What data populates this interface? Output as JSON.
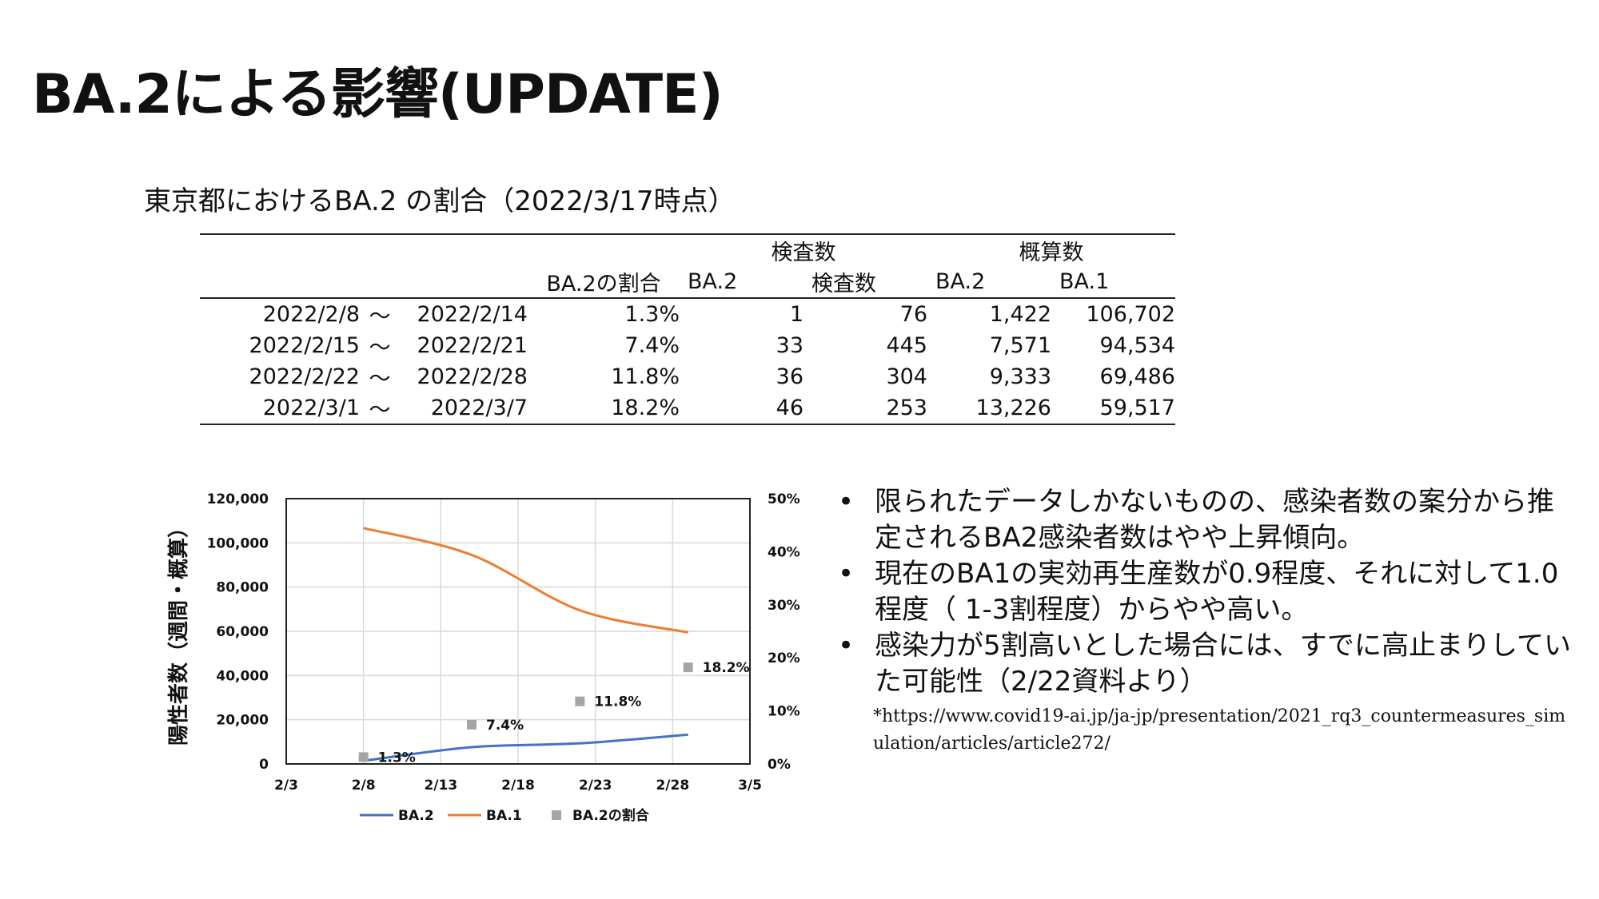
{
  "title": "BA.2による影響(UPDATE)",
  "table_caption": "東京都におけるBA.2 の割合（2022/3/17時点）",
  "table": {
    "group_headers": {
      "tests": "検査数",
      "estimates": "概算数"
    },
    "col_headers": {
      "ratio": "BA.2の割合",
      "ba2": "BA.2",
      "tests": "検査数",
      "est_ba2": "BA.2",
      "est_ba1": "BA.1"
    },
    "tilde": "～",
    "rows": [
      {
        "start": "2022/2/8",
        "end": "2022/2/14",
        "ratio": "1.3%",
        "ba2": "1",
        "tests": "76",
        "est_ba2": "1,422",
        "est_ba1": "106,702"
      },
      {
        "start": "2022/2/15",
        "end": "2022/2/21",
        "ratio": "7.4%",
        "ba2": "33",
        "tests": "445",
        "est_ba2": "7,571",
        "est_ba1": "94,534"
      },
      {
        "start": "2022/2/22",
        "end": "2022/2/28",
        "ratio": "11.8%",
        "ba2": "36",
        "tests": "304",
        "est_ba2": "9,333",
        "est_ba1": "69,486"
      },
      {
        "start": "2022/3/1",
        "end": "2022/3/7",
        "ratio": "18.2%",
        "ba2": "46",
        "tests": "253",
        "est_ba2": "13,226",
        "est_ba1": "59,517"
      }
    ]
  },
  "chart_data": {
    "type": "line",
    "ylabel": "陽性者数（週間・概算）",
    "x_ticks": [
      "2/3",
      "2/8",
      "2/13",
      "2/18",
      "2/23",
      "2/28",
      "3/5"
    ],
    "xlim": [
      "2022-02-03",
      "2022-03-05"
    ],
    "y_left": {
      "min": 0,
      "max": 120000,
      "ticks": [
        "0",
        "20,000",
        "40,000",
        "60,000",
        "80,000",
        "100,000",
        "120,000"
      ]
    },
    "y_right": {
      "min": 0,
      "max": 50,
      "ticks": [
        "0%",
        "10%",
        "20%",
        "30%",
        "40%",
        "50%"
      ]
    },
    "grid": true,
    "legend_position": "bottom",
    "series": [
      {
        "name": "BA.2",
        "axis": "left",
        "kind": "line",
        "color": "#4472C4",
        "x": [
          "2022-02-08",
          "2022-02-15",
          "2022-02-22",
          "2022-03-01"
        ],
        "y": [
          1422,
          7571,
          9333,
          13226
        ]
      },
      {
        "name": "BA.1",
        "axis": "left",
        "kind": "line",
        "color": "#ED7D31",
        "x": [
          "2022-02-08",
          "2022-02-15",
          "2022-02-22",
          "2022-03-01"
        ],
        "y": [
          106702,
          94534,
          69486,
          59517
        ]
      },
      {
        "name": "BA.2の割合",
        "axis": "right",
        "kind": "scatter",
        "color": "#A5A5A5",
        "x": [
          "2022-02-08",
          "2022-02-15",
          "2022-02-22",
          "2022-03-01"
        ],
        "y": [
          1.3,
          7.4,
          11.8,
          18.2
        ],
        "labels": [
          "1.3%",
          "7.4%",
          "11.8%",
          "18.2%"
        ]
      }
    ]
  },
  "bullets": [
    "限られたデータしかないものの、感染者数の案分から推定されるBA2感染者数はやや上昇傾向。",
    "現在のBA1の実効再生産数が0.9程度、それに対して1.0程度（ 1-3割程度）からやや高い。",
    "感染力が5割高いとした場合には、すでに高止まりしていた可能性（2/22資料より）"
  ],
  "bullet_marker": "•",
  "footnote": "*https://www.covid19-ai.jp/ja-jp/presentation/2021_rq3_countermeasures_simulation/articles/article272/"
}
